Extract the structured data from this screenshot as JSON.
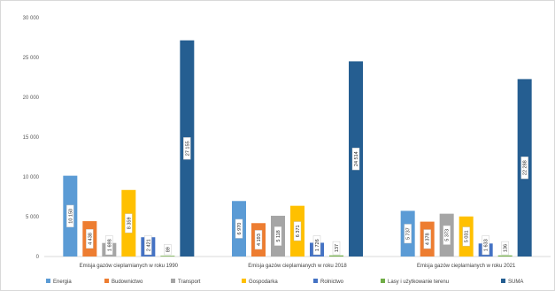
{
  "chart_data": {
    "type": "bar",
    "title": "",
    "xlabel": "",
    "ylabel": "",
    "ylim": [
      0,
      30000
    ],
    "yticks": [
      "0",
      "5 000",
      "10 000",
      "15 000",
      "20 000",
      "25 000",
      "30 000"
    ],
    "ytick_values": [
      0,
      5000,
      10000,
      15000,
      20000,
      25000,
      30000
    ],
    "grid": false,
    "legend_position": "bottom",
    "categories": [
      "Emisja gazów cieplarnianych w roku 1990",
      "Emisja gazów cieplarnianych w roku 2018",
      "Emisja gazów cieplarnianych w roku 2021"
    ],
    "series": [
      {
        "name": "Energia",
        "color": "#5b9bd5",
        "values": [
          10150,
          6970,
          5737
        ],
        "labels": [
          "10 150",
          "6 970",
          "5 737"
        ]
      },
      {
        "name": "Budownictwo",
        "color": "#ed7d31",
        "values": [
          4438,
          4193,
          4378
        ],
        "labels": [
          "4 438",
          "4 193",
          "4 378"
        ]
      },
      {
        "name": "Transport",
        "color": "#a5a5a5",
        "values": [
          1698,
          5118,
          5373
        ],
        "labels": [
          "1 698",
          "5 118",
          "5 373"
        ]
      },
      {
        "name": "Gospodarka",
        "color": "#ffc000",
        "values": [
          8359,
          6371,
          5031
        ],
        "labels": [
          "8 359",
          "6 371",
          "5 031"
        ]
      },
      {
        "name": "Rolnictwo",
        "color": "#4472c4",
        "values": [
          2421,
          1726,
          1633
        ],
        "labels": [
          "2 421",
          "1 726",
          "1 633"
        ]
      },
      {
        "name": "Lasy i użytkowanie terenu",
        "color": "#70ad47",
        "values": [
          89,
          137,
          136
        ],
        "labels": [
          "89",
          "137",
          "136"
        ]
      },
      {
        "name": "SUMA",
        "color": "#255e91",
        "values": [
          27155,
          24514,
          22288
        ],
        "labels": [
          "27 155",
          "24 514",
          "22 288"
        ]
      }
    ]
  }
}
